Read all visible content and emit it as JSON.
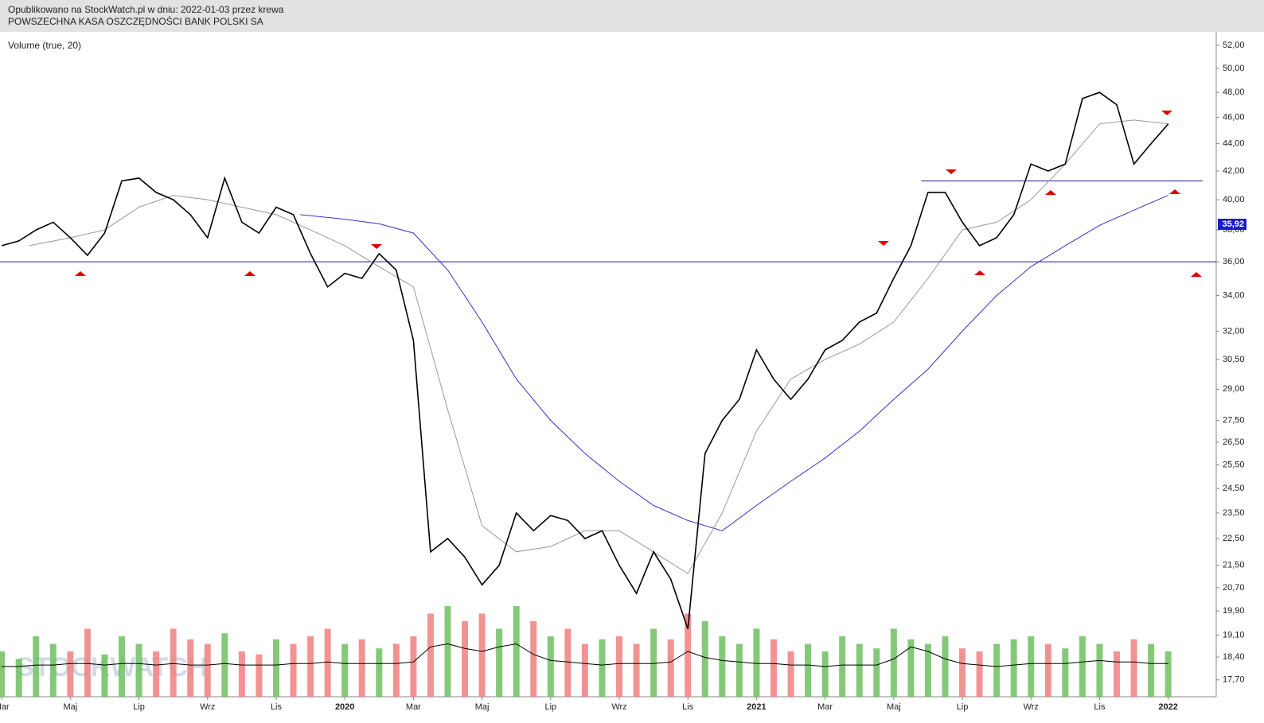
{
  "header": {
    "published": "Opublikowano na StockWatch.pl w dniu: 2022-01-03 przez krewa",
    "instrument": "POWSZECHNA KASA OSZCZĘDNOŚCI BANK POLSKI SA"
  },
  "chart_data": {
    "type": "line",
    "indicator_label": "Volume (true, 20)",
    "watermark": "STOCKWATCH",
    "price_marker": "35,92",
    "log_scale": true,
    "xlim": [
      1.95,
      37.4
    ],
    "xticks": [
      {
        "value": 2,
        "label": "Mar"
      },
      {
        "value": 4,
        "label": "Maj"
      },
      {
        "value": 6,
        "label": "Lip"
      },
      {
        "value": 8,
        "label": "Wrz"
      },
      {
        "value": 10,
        "label": "Lis"
      },
      {
        "value": 12,
        "label": "2020"
      },
      {
        "value": 14,
        "label": "Mar"
      },
      {
        "value": 16,
        "label": "Maj"
      },
      {
        "value": 18,
        "label": "Lip"
      },
      {
        "value": 20,
        "label": "Wrz"
      },
      {
        "value": 22,
        "label": "Lis"
      },
      {
        "value": 24,
        "label": "2021"
      },
      {
        "value": 26,
        "label": "Mar"
      },
      {
        "value": 28,
        "label": "Maj"
      },
      {
        "value": 30,
        "label": "Lip"
      },
      {
        "value": 32,
        "label": "Wrz"
      },
      {
        "value": 34,
        "label": "Lis"
      },
      {
        "value": 36,
        "label": "2022"
      }
    ],
    "ylim": [
      17.2,
      53.2
    ],
    "yticks": [
      {
        "value": 52,
        "label": "52,00"
      },
      {
        "value": 50,
        "label": "50,00"
      },
      {
        "value": 48,
        "label": "48,00"
      },
      {
        "value": 46,
        "label": "46,00"
      },
      {
        "value": 44,
        "label": "44,00"
      },
      {
        "value": 42,
        "label": "42,00"
      },
      {
        "value": 40,
        "label": "40,00"
      },
      {
        "value": 38,
        "label": "38,00"
      },
      {
        "value": 36,
        "label": "36,00"
      },
      {
        "value": 34,
        "label": "34,00"
      },
      {
        "value": 32,
        "label": "32,00"
      },
      {
        "value": 30.5,
        "label": "30,50"
      },
      {
        "value": 29,
        "label": "29,00"
      },
      {
        "value": 27.5,
        "label": "27,50"
      },
      {
        "value": 26.5,
        "label": "26,50"
      },
      {
        "value": 25.5,
        "label": "25,50"
      },
      {
        "value": 24.5,
        "label": "24,50"
      },
      {
        "value": 23.5,
        "label": "23,50"
      },
      {
        "value": 22.5,
        "label": "22,50"
      },
      {
        "value": 21.5,
        "label": "21,50"
      },
      {
        "value": 20.7,
        "label": "20,70"
      },
      {
        "value": 19.9,
        "label": "19,90"
      },
      {
        "value": 19.1,
        "label": "19,10"
      },
      {
        "value": 18.4,
        "label": "18,40"
      },
      {
        "value": 17.7,
        "label": "17,70"
      }
    ],
    "series": [
      {
        "name": "price",
        "color": "#000000",
        "x": [
          2,
          2.5,
          3,
          3.5,
          4,
          4.5,
          5,
          5.5,
          6,
          6.5,
          7,
          7.5,
          8,
          8.5,
          9,
          9.5,
          10,
          10.5,
          11,
          11.5,
          12,
          12.5,
          13,
          13.5,
          14,
          14.5,
          15,
          15.5,
          16,
          16.5,
          17,
          17.5,
          18,
          18.5,
          19,
          19.5,
          20,
          20.5,
          21,
          21.5,
          22,
          22.5,
          23,
          23.5,
          24,
          24.5,
          25,
          25.5,
          26,
          26.5,
          27,
          27.5,
          28,
          28.5,
          29,
          29.5,
          30,
          30.5,
          31,
          31.5,
          32,
          32.5,
          33,
          33.5,
          34,
          34.5,
          35,
          35.5,
          36
        ],
        "values": [
          37.0,
          37.3,
          38.0,
          38.5,
          37.5,
          36.4,
          37.8,
          41.3,
          41.5,
          40.5,
          40.0,
          39.0,
          37.5,
          41.5,
          38.5,
          37.8,
          39.5,
          39.0,
          36.5,
          34.5,
          35.3,
          35.0,
          36.5,
          35.5,
          31.5,
          22.0,
          22.5,
          21.8,
          20.8,
          21.5,
          23.5,
          22.8,
          23.4,
          23.2,
          22.5,
          22.8,
          21.5,
          20.5,
          22.0,
          21.0,
          19.3,
          26.0,
          27.5,
          28.5,
          31.0,
          29.5,
          28.5,
          29.5,
          31.0,
          31.5,
          32.5,
          33.0,
          35.0,
          37.0,
          40.5,
          40.5,
          38.5,
          37.0,
          37.5,
          39.0,
          42.5,
          42.0,
          42.5,
          47.5,
          48.0,
          47.0,
          42.5,
          44.0,
          45.5
        ]
      },
      {
        "name": "ma-short",
        "color": "#999999",
        "x": [
          2.8,
          4,
          5,
          6,
          7,
          8,
          9,
          10,
          11,
          12,
          13,
          14,
          15,
          16,
          17,
          18,
          19,
          20,
          21,
          22,
          23,
          24,
          25,
          26,
          27,
          28,
          29,
          30,
          31,
          32,
          33,
          34,
          35,
          36
        ],
        "values": [
          37.0,
          37.5,
          38.0,
          39.5,
          40.3,
          40.0,
          39.5,
          39.0,
          38.0,
          37.0,
          35.7,
          34.5,
          28.0,
          23.0,
          22.0,
          22.2,
          22.8,
          22.8,
          22.0,
          21.2,
          23.5,
          27.0,
          29.5,
          30.5,
          31.3,
          32.5,
          35.0,
          38.0,
          38.5,
          40.0,
          42.5,
          45.5,
          45.8,
          45.5
        ]
      },
      {
        "name": "ma-long",
        "color": "#3333cc",
        "x": [
          10.7,
          12,
          13,
          14,
          15,
          16,
          17,
          18,
          19,
          20,
          21,
          22,
          23,
          24,
          25,
          26,
          27,
          28,
          29,
          30,
          31,
          32,
          33,
          34,
          35,
          36
        ],
        "values": [
          39.0,
          38.7,
          38.4,
          37.8,
          35.5,
          32.5,
          29.5,
          27.5,
          26.0,
          24.8,
          23.8,
          23.2,
          22.8,
          23.8,
          24.8,
          25.8,
          27.0,
          28.5,
          30.0,
          32.0,
          34.0,
          35.7,
          37.0,
          38.3,
          39.3,
          40.3
        ]
      }
    ],
    "levels": [
      {
        "y": 36,
        "x": [
          1.95,
          37.4
        ],
        "color": "#1a1aa0"
      },
      {
        "y": 41.3,
        "x": [
          28.8,
          37.0
        ],
        "color": "#1a1aa0"
      }
    ],
    "volume": {
      "vlim": [
        0,
        100
      ],
      "up_color": "#6fbf60",
      "down_color": "#f08080",
      "ma_color": "#000000",
      "values": [
        30,
        25,
        40,
        35,
        30,
        45,
        28,
        40,
        35,
        30,
        45,
        38,
        35,
        42,
        30,
        28,
        38,
        35,
        40,
        45,
        35,
        38,
        32,
        35,
        40,
        55,
        60,
        50,
        55,
        45,
        60,
        50,
        40,
        45,
        35,
        38,
        40,
        35,
        45,
        38,
        55,
        50,
        40,
        35,
        45,
        38,
        30,
        35,
        30,
        40,
        35,
        32,
        45,
        38,
        35,
        40,
        32,
        30,
        35,
        38,
        40,
        35,
        32,
        40,
        35,
        30,
        38,
        35,
        30
      ],
      "ma": [
        20,
        20,
        21,
        21,
        22,
        22,
        21,
        22,
        22,
        21,
        22,
        21,
        21,
        22,
        21,
        21,
        21,
        22,
        22,
        23,
        22,
        22,
        22,
        22,
        23,
        33,
        35,
        32,
        30,
        33,
        35,
        28,
        24,
        23,
        22,
        21,
        22,
        22,
        22,
        23,
        30,
        26,
        24,
        23,
        22,
        22,
        21,
        21,
        20,
        21,
        21,
        21,
        25,
        33,
        30,
        25,
        22,
        21,
        20,
        21,
        22,
        22,
        22,
        23,
        24,
        23,
        23,
        22,
        22
      ]
    }
  }
}
